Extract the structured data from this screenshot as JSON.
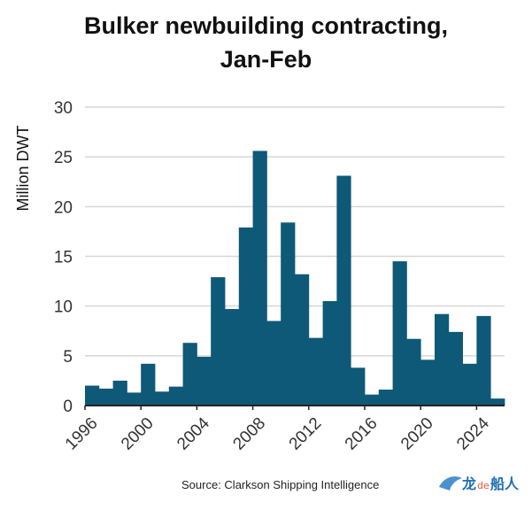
{
  "chart_data": {
    "type": "bar",
    "title_line1": "Bulker newbuilding contracting,",
    "title_line2": "Jan-Feb",
    "ylabel": "Million DWT",
    "xlabel": "",
    "ylim": [
      0,
      30
    ],
    "yticks": [
      "0",
      "5",
      "10",
      "15",
      "20",
      "25",
      "30"
    ],
    "xlim": [
      1996,
      2026
    ],
    "xtick_labels": [
      "1996",
      "2000",
      "2004",
      "2008",
      "2012",
      "2016",
      "2020",
      "2024"
    ],
    "grid": true,
    "bar_color": "#0e5878",
    "categories": [
      1996,
      1997,
      1998,
      1999,
      2000,
      2001,
      2002,
      2003,
      2004,
      2005,
      2006,
      2007,
      2008,
      2009,
      2010,
      2011,
      2012,
      2013,
      2014,
      2015,
      2016,
      2017,
      2018,
      2019,
      2020,
      2021,
      2022,
      2023,
      2024,
      2025
    ],
    "values": [
      2.0,
      1.7,
      2.5,
      1.3,
      4.2,
      1.4,
      1.9,
      6.3,
      4.9,
      12.9,
      9.7,
      17.9,
      25.6,
      8.5,
      18.4,
      13.2,
      6.8,
      10.5,
      23.1,
      3.8,
      1.1,
      1.6,
      14.5,
      6.7,
      4.6,
      9.2,
      7.4,
      4.2,
      9.0,
      0.7
    ]
  },
  "source": "Source: Clarkson Shipping Intelligence",
  "watermark": {
    "text_1": "龙",
    "text_2": "de",
    "text_3": "船人"
  }
}
